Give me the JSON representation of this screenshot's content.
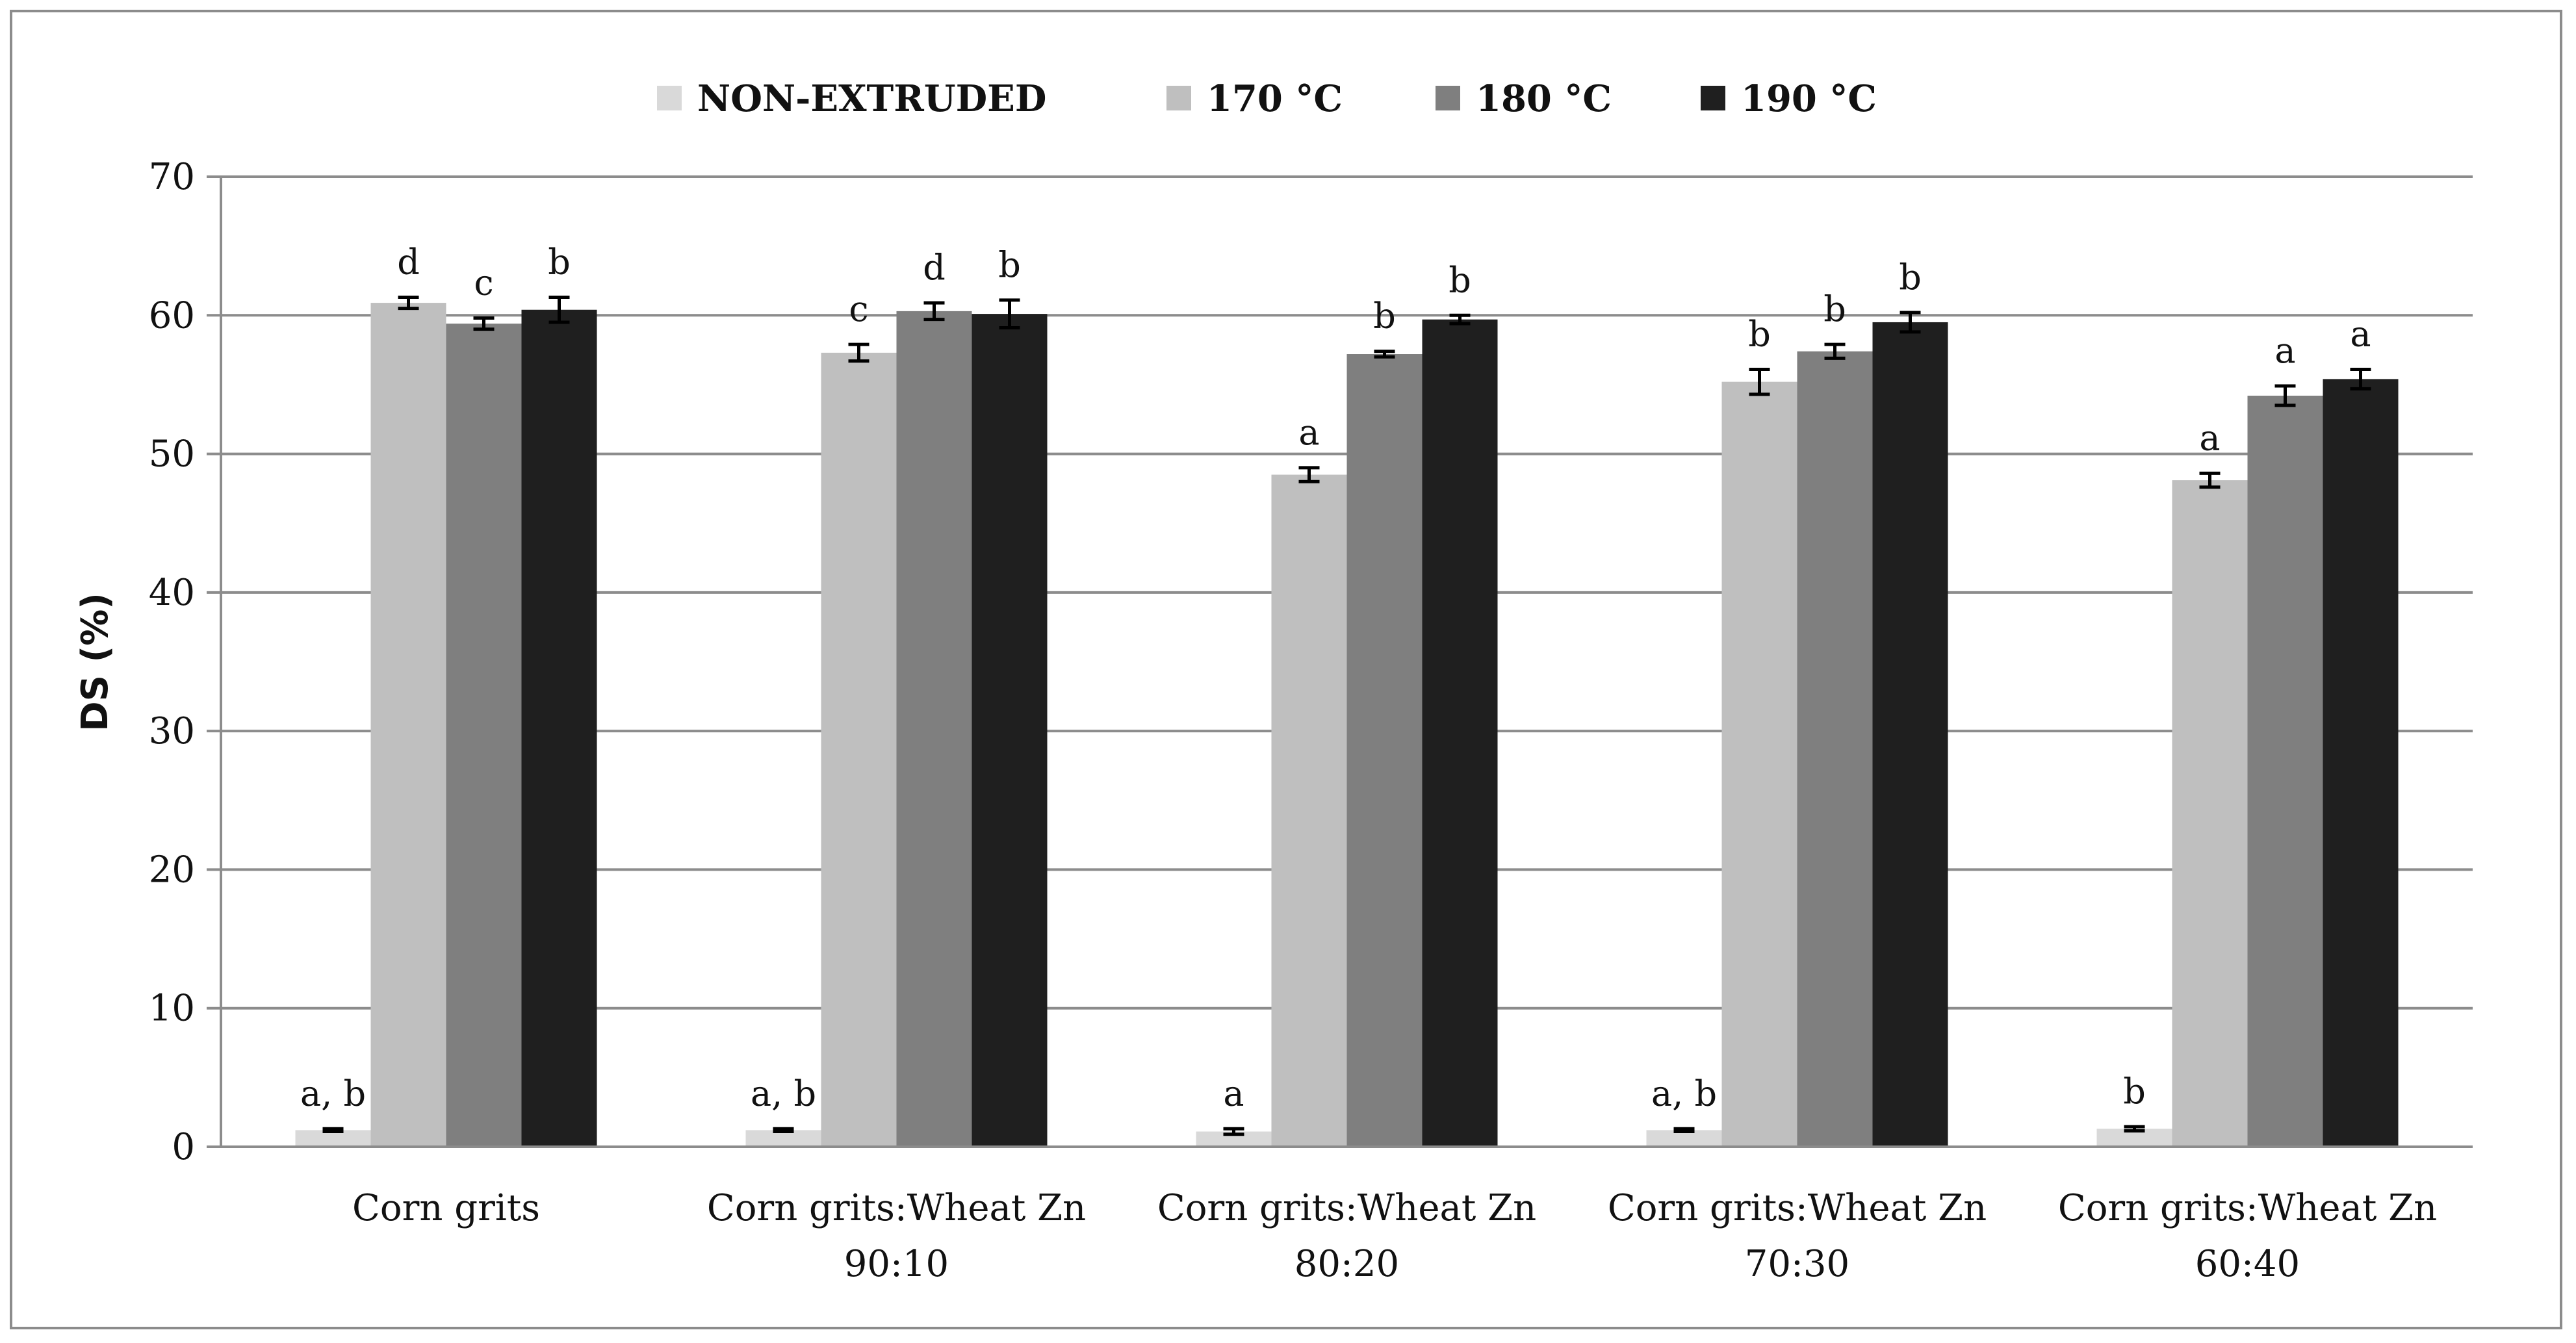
{
  "chart_data": {
    "type": "bar",
    "title": "",
    "xlabel": "",
    "ylabel": "DS (%)",
    "ylim": [
      0,
      70
    ],
    "yticks": [
      0,
      10,
      20,
      30,
      40,
      50,
      60,
      70
    ],
    "grid": true,
    "legend_position": "top",
    "categories": [
      [
        "Corn grits"
      ],
      [
        "Corn grits:Wheat Zn",
        "90:10"
      ],
      [
        "Corn grits:Wheat Zn",
        "80:20"
      ],
      [
        "Corn grits:Wheat Zn",
        "70:30"
      ],
      [
        "Corn grits:Wheat Zn",
        "60:40"
      ]
    ],
    "series": [
      {
        "name": "NON-EXTRUDED",
        "color": "#d9d9d9",
        "values": [
          1.2,
          1.2,
          1.1,
          1.2,
          1.3
        ],
        "errors": [
          0.1,
          0.1,
          0.2,
          0.1,
          0.15
        ],
        "labels": [
          "a, b",
          "a, b",
          "a",
          "a, b",
          "b"
        ]
      },
      {
        "name": "170 °C",
        "color": "#bfbfbf",
        "values": [
          60.9,
          57.3,
          48.5,
          55.2,
          48.1
        ],
        "errors": [
          0.4,
          0.6,
          0.5,
          0.9,
          0.5
        ],
        "labels": [
          "d",
          "c",
          "a",
          "b",
          "a"
        ]
      },
      {
        "name": "180 °C",
        "color": "#7f7f7f",
        "values": [
          59.4,
          60.3,
          57.2,
          57.4,
          54.2
        ],
        "errors": [
          0.4,
          0.6,
          0.2,
          0.5,
          0.7
        ],
        "labels": [
          "c",
          "d",
          "b",
          "b",
          "a"
        ]
      },
      {
        "name": "190 °C",
        "color": "#1f1f1f",
        "values": [
          60.4,
          60.1,
          59.7,
          59.5,
          55.4
        ],
        "errors": [
          0.9,
          1.0,
          0.3,
          0.7,
          0.7
        ],
        "labels": [
          "b",
          "b",
          "b",
          "b",
          "a"
        ]
      }
    ]
  }
}
